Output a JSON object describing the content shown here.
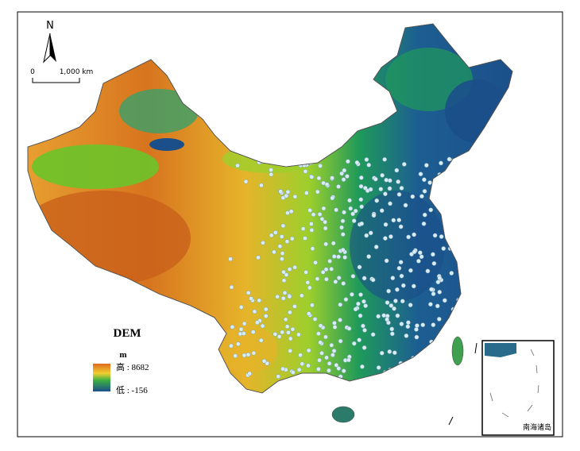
{
  "north_label": "N",
  "scale_bar": {
    "start": "0",
    "end": "1,000 km"
  },
  "legend": {
    "title": "DEM",
    "unit": "m",
    "high": "高 : 8682",
    "low": "低 : -156"
  },
  "inset": {
    "label": "南海诸岛"
  }
}
